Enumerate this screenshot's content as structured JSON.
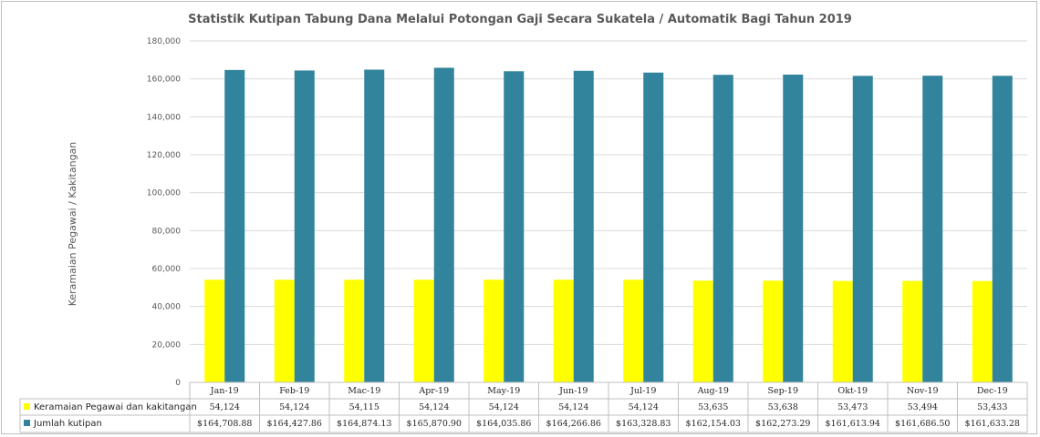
{
  "chart_data": {
    "type": "bar",
    "title": "Statistik Kutipan Tabung Dana Melalui Potongan Gaji Secara Sukatela / Automatik Bagi Tahun 2019",
    "ylabel": "Keramaian Pegawai / Kakitangan",
    "xlabel": "",
    "ylim": [
      0,
      180000
    ],
    "y_ticks": [
      "0",
      "20,000",
      "40,000",
      "60,000",
      "80,000",
      "100,000",
      "120,000",
      "140,000",
      "160,000",
      "180,000"
    ],
    "grid": true,
    "legend_placement": "data-table-left",
    "categories": [
      "Jan-19",
      "Feb-19",
      "Mac-19",
      "Apr-19",
      "May-19",
      "Jun-19",
      "Jul-19",
      "Aug-19",
      "Sep-19",
      "Okt-19",
      "Nov-19",
      "Dec-19"
    ],
    "series": [
      {
        "name": "Keramaian Pegawai dan kakitangan",
        "color": "#ffff00",
        "values": [
          54124,
          54124,
          54115,
          54124,
          54124,
          54124,
          54124,
          53635,
          53638,
          53473,
          53494,
          53433
        ],
        "labels": [
          "54,124",
          "54,124",
          "54,115",
          "54,124",
          "54,124",
          "54,124",
          "54,124",
          "53,635",
          "53,638",
          "53,473",
          "53,494",
          "53,433"
        ]
      },
      {
        "name": "Jumlah kutipan",
        "color": "#31849b",
        "values": [
          164708.88,
          164427.86,
          164874.13,
          165870.9,
          164035.86,
          164266.86,
          163328.83,
          162154.03,
          162273.29,
          161613.94,
          161686.5,
          161633.28
        ],
        "labels": [
          "$164,708.88",
          "$164,427.86",
          "$164,874.13",
          "$165,870.90",
          "$164,035.86",
          "$164,266.86",
          "$163,328.83",
          "$162,154.03",
          "$162,273.29",
          "$161,613.94",
          "$161,686.50",
          "$161,633.28"
        ]
      }
    ]
  }
}
